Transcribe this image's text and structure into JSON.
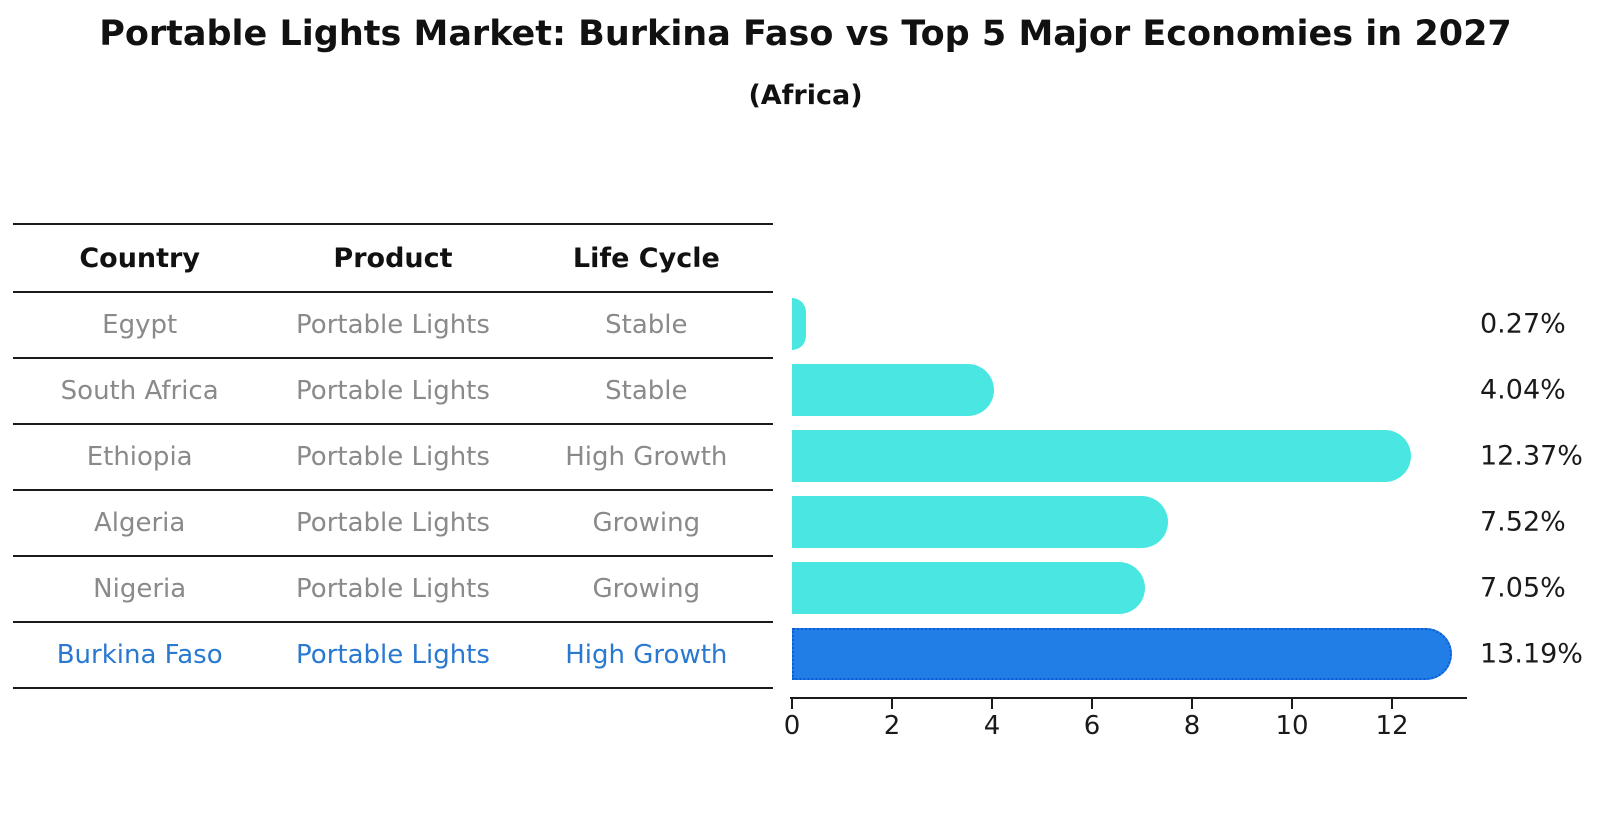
{
  "title": "Portable Lights Market: Burkina Faso vs Top 5 Major Economies in 2027",
  "subtitle": "(Africa)",
  "table": {
    "headers": [
      "Country",
      "Product",
      "Life Cycle"
    ],
    "rows": [
      {
        "country": "Egypt",
        "product": "Portable Lights",
        "life_cycle": "Stable",
        "highlight": false
      },
      {
        "country": "South Africa",
        "product": "Portable Lights",
        "life_cycle": "Stable",
        "highlight": false
      },
      {
        "country": "Ethiopia",
        "product": "Portable Lights",
        "life_cycle": "High Growth",
        "highlight": false
      },
      {
        "country": "Algeria",
        "product": "Portable Lights",
        "life_cycle": "Growing",
        "highlight": false
      },
      {
        "country": "Nigeria",
        "product": "Portable Lights",
        "life_cycle": "Growing",
        "highlight": false
      },
      {
        "country": "Burkina Faso",
        "product": "Portable Lights",
        "life_cycle": "High Growth",
        "highlight": true
      }
    ]
  },
  "chart_data": {
    "type": "bar",
    "orientation": "horizontal",
    "title": "Portable Lights Market: Burkina Faso vs Top 5 Major Economies in 2027",
    "subtitle": "(Africa)",
    "categories": [
      "Egypt",
      "South Africa",
      "Ethiopia",
      "Algeria",
      "Nigeria",
      "Burkina Faso"
    ],
    "values": [
      0.27,
      4.04,
      12.37,
      7.52,
      7.05,
      13.19
    ],
    "value_labels": [
      "0.27%",
      "4.04%",
      "12.37%",
      "7.52%",
      "7.05%",
      "13.19%"
    ],
    "highlight_index": 5,
    "xlabel": "",
    "ylabel": "",
    "xlim": [
      0,
      13.54
    ],
    "xticks": [
      0,
      2,
      4,
      6,
      8,
      10,
      12
    ],
    "grid": false,
    "legend": false
  },
  "colors": {
    "bar": "#4ae6e1",
    "highlight_bar": "#207ee6",
    "highlight_border": "#0c5cd8",
    "highlight_text": "#2979d0",
    "row_text": "#8a8a8a",
    "header_text": "#111111",
    "axis": "#1b1b1b",
    "label_text": "#1a1a1a"
  }
}
